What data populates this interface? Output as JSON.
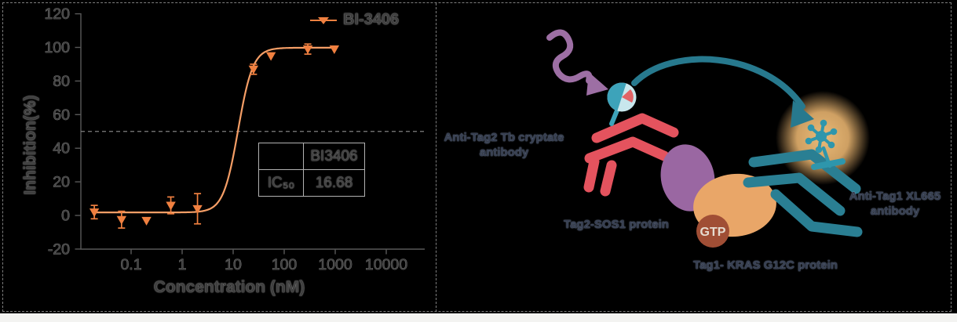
{
  "chart_data": {
    "type": "scatter",
    "title": "",
    "xlabel": "Concentration (nM)",
    "ylabel": "Inhibition(%)",
    "x_scale": "log",
    "xlim": [
      0.01,
      30000
    ],
    "ylim": [
      -20,
      120
    ],
    "yticks": [
      120,
      100,
      80,
      60,
      40,
      20,
      0,
      -20
    ],
    "xticks": [
      0.1,
      1,
      10,
      100,
      1000,
      10000
    ],
    "grid": false,
    "reference_line_y": 50,
    "legend_position": "top-right",
    "series": [
      {
        "name": "BI-3406",
        "color": "#F08040",
        "line_color": "#F59E66",
        "marker": "triangle-down",
        "points": [
          {
            "x": 0.019,
            "y": 2,
            "err": 4
          },
          {
            "x": 0.065,
            "y": -2.5,
            "err": 5
          },
          {
            "x": 0.2,
            "y": -3,
            "err": 0
          },
          {
            "x": 0.6,
            "y": 6,
            "err": 5
          },
          {
            "x": 2,
            "y": 4,
            "err": 9
          },
          {
            "x": 25,
            "y": 87,
            "err": 3
          },
          {
            "x": 55,
            "y": 95,
            "err": 0
          },
          {
            "x": 290,
            "y": 99,
            "err": 3
          },
          {
            "x": 960,
            "y": 99,
            "err": 0
          }
        ],
        "fit": {
          "bottom": 1.8,
          "top": 99.8,
          "ec50": 12.5,
          "hill": 3.0,
          "range": [
            0.019,
            1000
          ]
        }
      }
    ],
    "ic50_table": {
      "col_header": "BI3406",
      "row_label": "IC₅₀",
      "value": "16.68"
    }
  },
  "diagram": {
    "labels": {
      "donor_antibody": "Anti-Tag2 Tb cryptate\nantibody",
      "sos1": "Tag2-SOS1 protein",
      "kras": "Tag1- KRAS G12C protein",
      "acceptor_antibody": "Anti-Tag1 XL665\nantibody",
      "gtp": "GTP"
    },
    "colors": {
      "donor_antibody_red": "#E4535E",
      "acceptor_antibody_teal": "#2A7F93",
      "excitation_purple": "#9D6FA4",
      "sos1_purple": "#9A67A2",
      "kras_orange": "#E9A668",
      "gtp_brown": "#A04E35",
      "glow_orange": "#F3BC74",
      "bead_teal": "#3DA3BA",
      "bead_light": "#C8E7ED",
      "bead_red": "#E26366",
      "fret_arrow_teal": "#27798E",
      "asterisk_teal": "#2E96AC"
    }
  }
}
